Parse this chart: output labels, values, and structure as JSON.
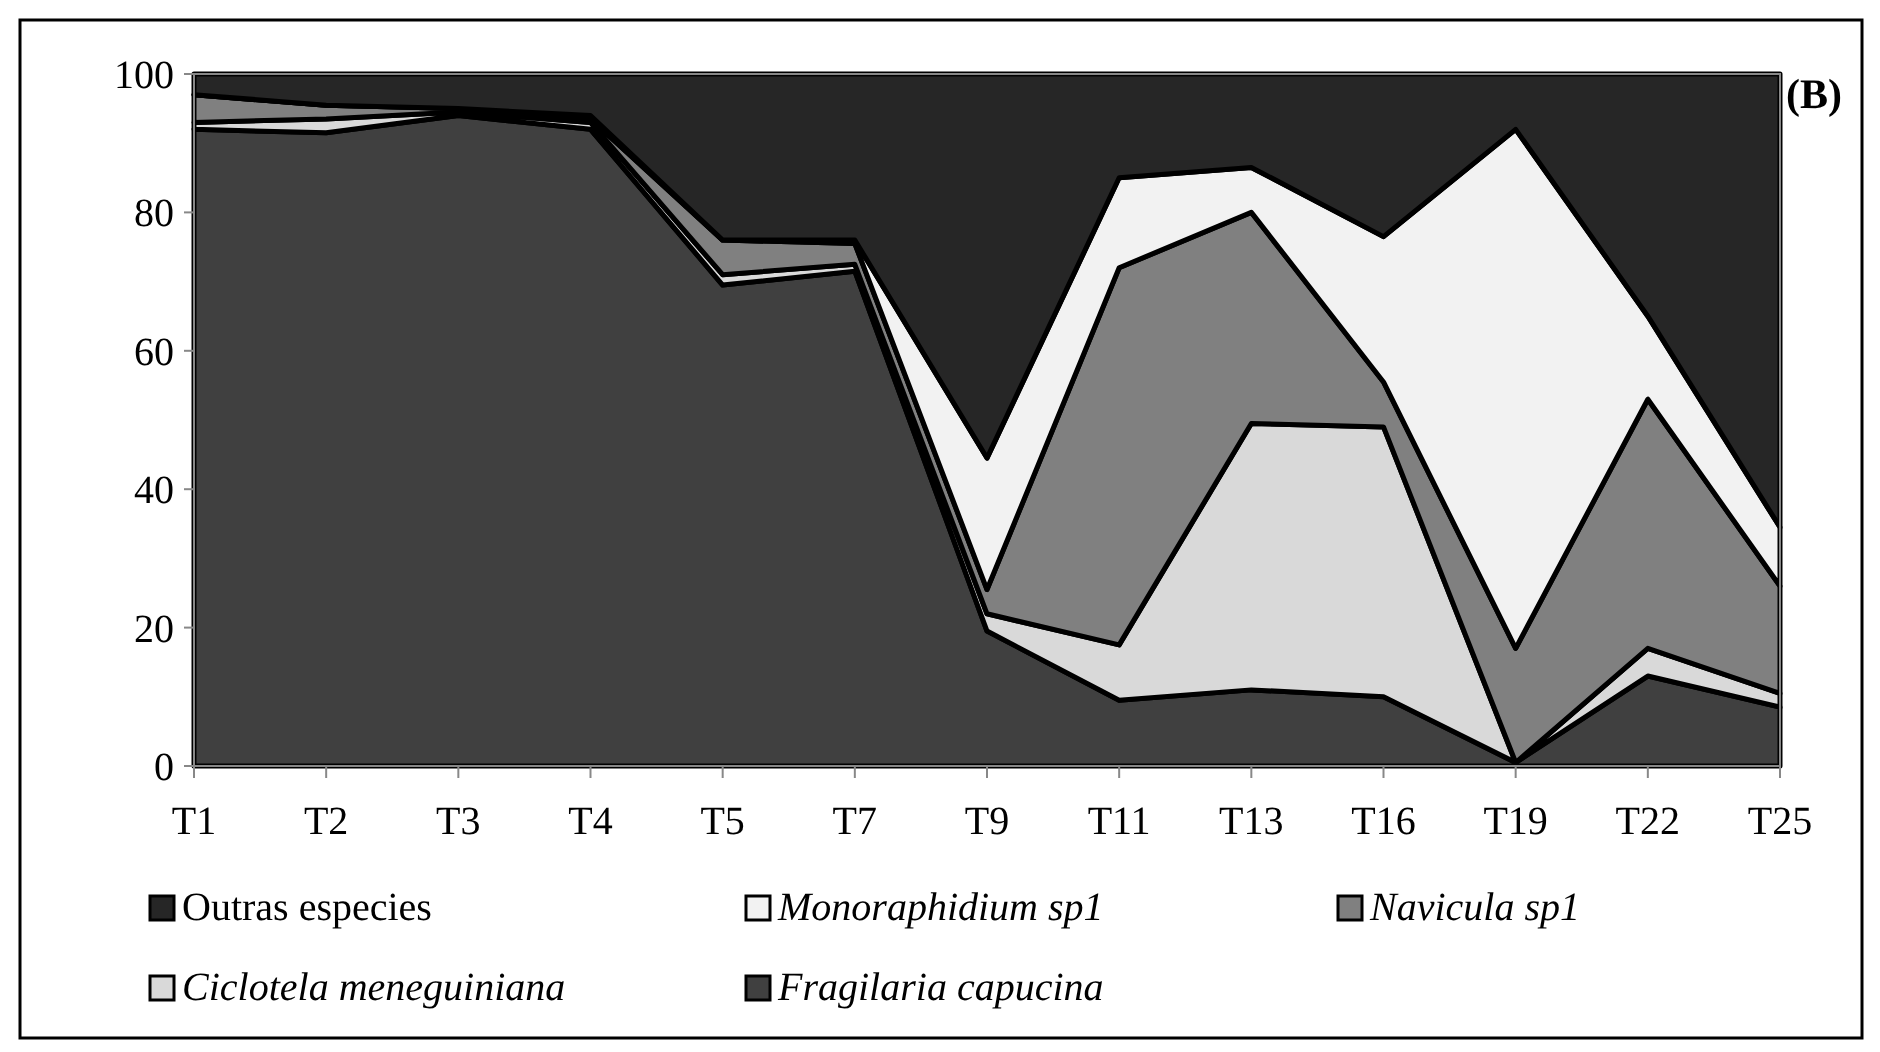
{
  "chart_data": {
    "type": "area",
    "stacked": true,
    "categories": [
      "T1",
      "T2",
      "T3",
      "T4",
      "T5",
      "T7",
      "T9",
      "T11",
      "T13",
      "T16",
      "T19",
      "T22",
      "T25"
    ],
    "series": [
      {
        "name": "Fragilaria capucina",
        "color": "#404040",
        "values": [
          92,
          91.5,
          94,
          92,
          69.5,
          71.5,
          19.5,
          9.5,
          11,
          10,
          0.5,
          13,
          8.5
        ]
      },
      {
        "name": "Ciclotela meneguiniana",
        "color": "#d9d9d9",
        "values": [
          1,
          2,
          0.5,
          1,
          1.5,
          1,
          2.5,
          8,
          38.5,
          39,
          0,
          4,
          2
        ]
      },
      {
        "name": "Navicula sp1",
        "color": "#808080",
        "values": [
          4,
          2,
          0.5,
          0.5,
          5,
          3,
          3.5,
          54.5,
          30.5,
          6.5,
          16.5,
          36,
          15.5
        ]
      },
      {
        "name": "Monoraphidium sp1",
        "color": "#f2f2f2",
        "values": [
          0,
          0,
          0,
          0.5,
          0,
          0.5,
          19,
          13,
          6.5,
          21,
          75,
          12,
          8.5
        ]
      },
      {
        "name": "Outras especies",
        "color": "#262626",
        "values": [
          3,
          4.5,
          5,
          6,
          24,
          24,
          55.5,
          15,
          13.5,
          23.5,
          8,
          35,
          65.5
        ]
      }
    ],
    "ylim": [
      0,
      100
    ],
    "yticks": [
      0,
      20,
      40,
      60,
      80,
      100
    ],
    "legend": "bottom",
    "annotations": [
      "(B)"
    ]
  }
}
